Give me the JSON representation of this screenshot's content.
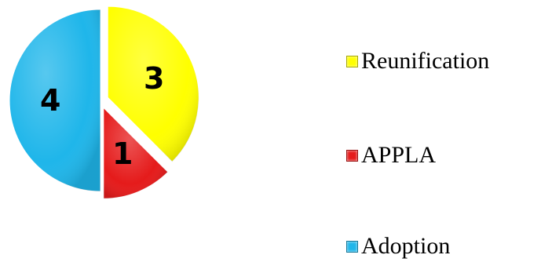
{
  "chart_data": {
    "type": "pie",
    "categories": [
      "Reunification",
      "APPLA",
      "Adoption"
    ],
    "values": [
      3,
      1,
      4
    ],
    "colors": [
      "#ffff00",
      "#e51b1b",
      "#1fb6ea"
    ],
    "exploded": [
      true,
      true,
      false
    ],
    "start": "12 o'clock, clockwise",
    "legend_position": "right",
    "title": ""
  },
  "legend": {
    "items": [
      {
        "label": "Reunification",
        "color": "#ffff00"
      },
      {
        "label": "APPLA",
        "color": "#e51b1b"
      },
      {
        "label": "Adoption",
        "color": "#1fb6ea"
      }
    ]
  }
}
